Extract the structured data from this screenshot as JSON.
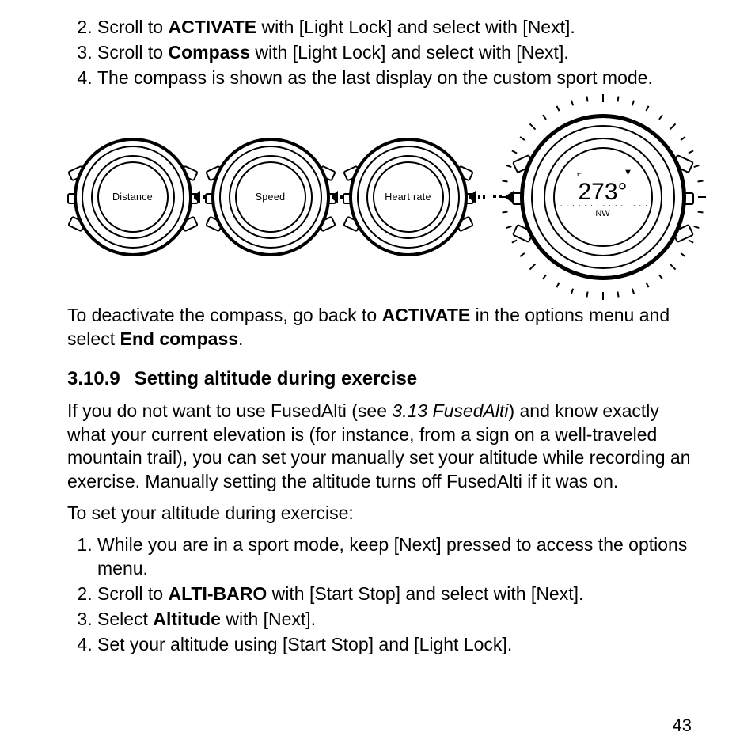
{
  "list_top": {
    "start": 2,
    "items": [
      {
        "pre": "Scroll to ",
        "bold": "ACTIVATE",
        "post": " with [Light Lock] and select with [Next]."
      },
      {
        "pre": "Scroll to ",
        "bold": "Compass",
        "post": " with [Light Lock] and select with [Next]."
      },
      {
        "pre": "The compass is shown as the last display on the custom sport mode.",
        "bold": "",
        "post": ""
      }
    ]
  },
  "watches": {
    "small_labels": [
      "Distance",
      "Speed",
      "Heart rate"
    ],
    "compass": {
      "degrees": "273°",
      "direction": "NW"
    },
    "outer_tick_count": 40,
    "inner_tick_count": 12,
    "arrow_dash_count": 2
  },
  "deactivate_para": {
    "t1": "To deactivate the compass, go back to ",
    "b1": "ACTIVATE",
    "t2": " in the options menu and select ",
    "b2": "End compass",
    "t3": "."
  },
  "section": {
    "number": "3.10.9",
    "title": "Setting altitude during exercise"
  },
  "fusedalti_para": {
    "t1": "If you do not want to use FusedAlti (see ",
    "ref": "3.13 FusedAlti",
    "t2": ") and know exactly what your current elevation is (for instance, from a sign on a well-traveled mountain trail), you can set your manually set your altitude while recording an exercise. Manually setting the altitude turns off FusedAlti if it was on."
  },
  "lead_in": "To set your altitude during exercise:",
  "list_mid": {
    "start": 1,
    "items": [
      {
        "pre": "While you are in a sport mode, keep [Next] pressed to access the options menu.",
        "bold": "",
        "post": ""
      },
      {
        "pre": "Scroll to ",
        "bold": "ALTI-BARO",
        "post": " with [Start Stop] and select with [Next]."
      },
      {
        "pre": "Select ",
        "bold": "Altitude",
        "post": " with [Next]."
      },
      {
        "pre": "Set your altitude using [Start Stop] and [Light Lock].",
        "bold": "",
        "post": ""
      }
    ]
  },
  "page_number": "43",
  "colors": {
    "fg": "#000000",
    "bg": "#ffffff"
  }
}
